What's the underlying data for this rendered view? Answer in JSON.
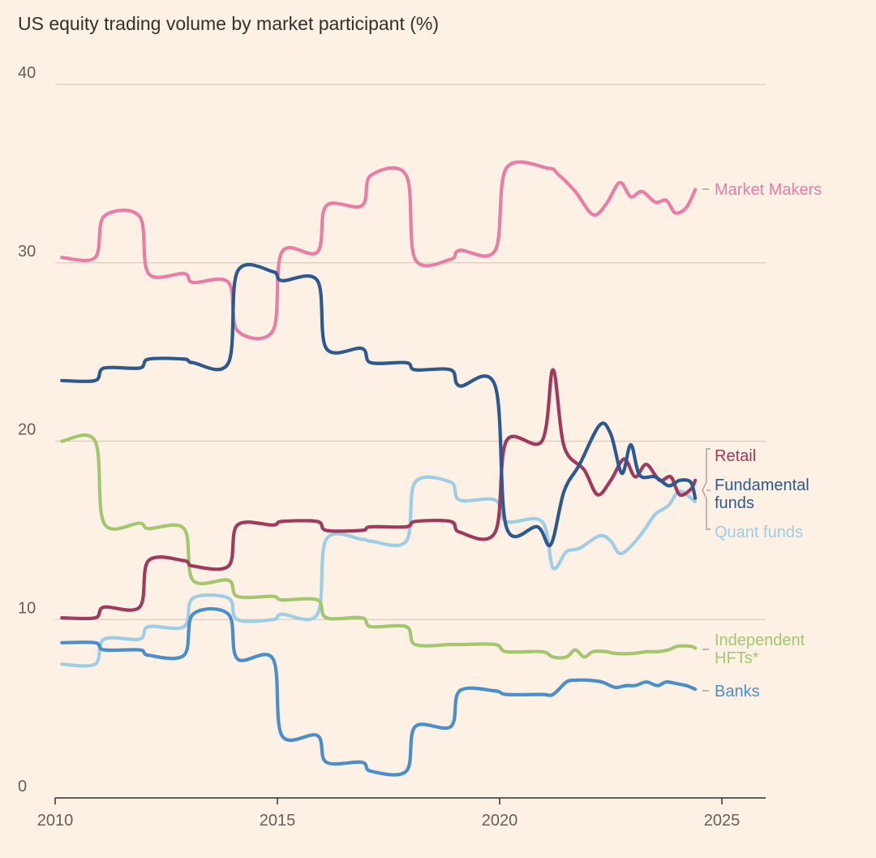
{
  "chart_data": {
    "type": "line",
    "title": "US equity trading volume by market participant (%)",
    "xlabel": "",
    "ylabel": "",
    "xlim": [
      2010,
      2026
    ],
    "ylim": [
      0,
      40
    ],
    "yticks": [
      {
        "value": 0,
        "label": "0"
      },
      {
        "value": 10,
        "label": "10"
      },
      {
        "value": 20,
        "label": "20"
      },
      {
        "value": 30,
        "label": "30"
      },
      {
        "value": 40,
        "label": "40"
      }
    ],
    "xticks": [
      {
        "value": 2010,
        "label": "2010"
      },
      {
        "value": 2015,
        "label": "2015"
      },
      {
        "value": 2020,
        "label": "2020"
      },
      {
        "value": 2025,
        "label": "2025"
      }
    ],
    "grid": true,
    "series": [
      {
        "name": "Market Makers",
        "label_lines": [
          "Market Makers"
        ],
        "color": "#E97DA5",
        "x": [
          2010.15,
          2010.9,
          2011.1,
          2011.9,
          2012.1,
          2012.9,
          2013.1,
          2013.9,
          2014.1,
          2014.9,
          2015.1,
          2015.9,
          2016.1,
          2016.9,
          2017.1,
          2017.9,
          2018.1,
          2018.9,
          2019.1,
          2019.9,
          2020.15,
          2021.1,
          2021.3,
          2021.7,
          2022.1,
          2022.4,
          2022.7,
          2022.95,
          2023.2,
          2023.5,
          2023.75,
          2023.95,
          2024.2,
          2024.4
        ],
        "values": [
          30.3,
          30.3,
          32.6,
          32.6,
          29.4,
          29.4,
          28.9,
          28.9,
          26.2,
          26.2,
          30.6,
          30.6,
          33.2,
          33.2,
          34.9,
          34.9,
          30.2,
          30.2,
          30.7,
          30.7,
          35.3,
          35.3,
          35.0,
          34.0,
          32.7,
          33.3,
          34.5,
          33.7,
          34.0,
          33.4,
          33.5,
          32.8,
          33.1,
          34.1
        ]
      },
      {
        "name": "Fundamental funds",
        "label_lines": [
          "Fundamental",
          "funds"
        ],
        "color": "#2E5890",
        "x": [
          2010.15,
          2010.9,
          2011.1,
          2011.9,
          2012.1,
          2012.9,
          2013.1,
          2013.9,
          2014.1,
          2014.9,
          2015.1,
          2015.9,
          2016.1,
          2016.9,
          2017.1,
          2017.9,
          2018.1,
          2018.9,
          2019.1,
          2019.9,
          2020.15,
          2020.85,
          2021.15,
          2021.45,
          2021.8,
          2022.25,
          2022.5,
          2022.75,
          2022.95,
          2023.15,
          2023.5,
          2023.8,
          2024.05,
          2024.3,
          2024.4
        ],
        "values": [
          23.4,
          23.4,
          24.1,
          24.1,
          24.6,
          24.6,
          24.4,
          24.4,
          29.5,
          29.5,
          29.0,
          29.0,
          25.2,
          25.2,
          24.4,
          24.4,
          24.0,
          24.0,
          23.1,
          23.1,
          15.2,
          15.2,
          14.2,
          17.2,
          18.7,
          20.9,
          20.4,
          18.2,
          19.8,
          18.1,
          18.0,
          17.5,
          17.8,
          17.7,
          16.8
        ]
      },
      {
        "name": "Retail",
        "label_lines": [
          "Retail"
        ],
        "color": "#A0395C",
        "x": [
          2010.15,
          2010.9,
          2011.1,
          2011.9,
          2012.1,
          2012.9,
          2013.1,
          2013.9,
          2014.1,
          2014.9,
          2015.1,
          2015.9,
          2016.1,
          2016.9,
          2017.1,
          2017.9,
          2018.1,
          2018.9,
          2019.1,
          2019.9,
          2020.15,
          2020.95,
          2021.2,
          2021.45,
          2021.9,
          2022.2,
          2022.5,
          2022.8,
          2023.05,
          2023.3,
          2023.6,
          2023.85,
          2024.05,
          2024.3,
          2024.4
        ],
        "values": [
          10.1,
          10.1,
          10.7,
          10.7,
          13.3,
          13.3,
          13.0,
          13.0,
          15.3,
          15.3,
          15.5,
          15.5,
          15.0,
          15.0,
          15.2,
          15.2,
          15.5,
          15.5,
          14.9,
          14.9,
          20.0,
          20.0,
          24.0,
          19.7,
          18.4,
          17.0,
          17.8,
          19.0,
          18.0,
          18.7,
          17.8,
          18.0,
          17.0,
          17.3,
          17.8
        ]
      },
      {
        "name": "Quant funds",
        "label_lines": [
          "Quant funds"
        ],
        "color": "#9ECDE6",
        "x": [
          2010.15,
          2010.9,
          2011.1,
          2011.9,
          2012.1,
          2012.9,
          2013.1,
          2013.9,
          2014.1,
          2014.9,
          2015.1,
          2015.9,
          2016.1,
          2016.9,
          2017.1,
          2017.9,
          2018.1,
          2018.9,
          2019.1,
          2019.9,
          2020.15,
          2020.95,
          2021.2,
          2021.5,
          2021.8,
          2022.25,
          2022.5,
          2022.7,
          2022.95,
          2023.25,
          2023.5,
          2023.8,
          2024.05,
          2024.4
        ],
        "values": [
          7.5,
          7.5,
          8.9,
          8.9,
          9.6,
          9.6,
          11.2,
          11.2,
          10.0,
          10.0,
          10.3,
          10.3,
          14.5,
          14.5,
          14.4,
          14.4,
          17.7,
          17.7,
          16.7,
          16.7,
          15.5,
          15.5,
          12.9,
          13.8,
          14.0,
          14.7,
          14.4,
          13.7,
          14.1,
          15.0,
          15.9,
          16.4,
          17.2,
          16.6
        ]
      },
      {
        "name": "Independent HFTs*",
        "label_lines": [
          "Independent",
          "HFTs*"
        ],
        "color": "#A4C66E",
        "x": [
          2010.15,
          2010.9,
          2011.1,
          2011.9,
          2012.1,
          2012.9,
          2013.1,
          2013.9,
          2014.1,
          2014.9,
          2015.1,
          2015.9,
          2016.1,
          2016.9,
          2017.1,
          2017.9,
          2018.1,
          2018.9,
          2019.1,
          2019.9,
          2020.15,
          2020.95,
          2021.2,
          2021.5,
          2021.7,
          2021.9,
          2022.1,
          2022.4,
          2022.6,
          2023.0,
          2023.3,
          2023.55,
          2023.8,
          2024.0,
          2024.3,
          2024.4
        ],
        "values": [
          20.0,
          20.0,
          15.4,
          15.4,
          15.1,
          15.1,
          12.2,
          12.2,
          11.3,
          11.3,
          11.1,
          11.1,
          10.1,
          10.1,
          9.6,
          9.6,
          8.6,
          8.6,
          8.6,
          8.6,
          8.2,
          8.2,
          7.9,
          7.9,
          8.3,
          7.9,
          8.2,
          8.2,
          8.1,
          8.1,
          8.2,
          8.2,
          8.3,
          8.5,
          8.5,
          8.4
        ]
      },
      {
        "name": "Banks",
        "label_lines": [
          "Banks"
        ],
        "color": "#4A8FCB",
        "x": [
          2010.15,
          2010.9,
          2011.1,
          2011.9,
          2012.1,
          2012.9,
          2013.1,
          2013.9,
          2014.1,
          2014.9,
          2015.1,
          2015.9,
          2016.1,
          2016.9,
          2017.1,
          2017.9,
          2018.1,
          2018.9,
          2019.1,
          2019.9,
          2020.15,
          2020.95,
          2021.2,
          2021.5,
          2021.7,
          2022.0,
          2022.3,
          2022.6,
          2022.85,
          2023.05,
          2023.3,
          2023.55,
          2023.75,
          2024.0,
          2024.2,
          2024.4
        ],
        "values": [
          8.7,
          8.7,
          8.3,
          8.3,
          8.0,
          8.0,
          10.3,
          10.3,
          7.8,
          7.8,
          3.5,
          3.5,
          2.0,
          2.0,
          1.5,
          1.5,
          4.0,
          4.0,
          6.0,
          6.0,
          5.8,
          5.8,
          5.8,
          6.5,
          6.6,
          6.6,
          6.5,
          6.2,
          6.3,
          6.3,
          6.5,
          6.3,
          6.5,
          6.4,
          6.3,
          6.1
        ]
      }
    ],
    "annotations": [
      {
        "type": "bracket",
        "text": "",
        "connects": [
          "Retail",
          "Fundamental funds",
          "Quant funds"
        ]
      }
    ]
  }
}
